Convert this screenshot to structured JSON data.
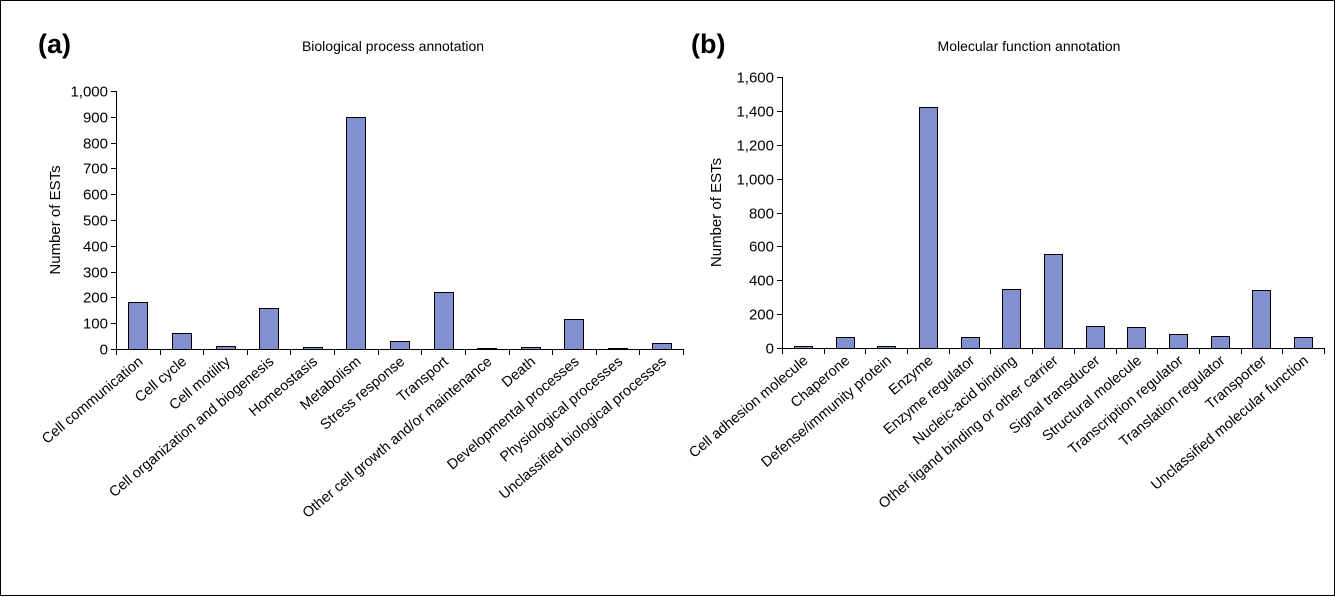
{
  "colors": {
    "bar_fill": "#8390cf",
    "axis": "#000000",
    "background": "#ffffff"
  },
  "chart_data": [
    {
      "panel_label": "(a)",
      "type": "bar",
      "title": "Biological process annotation",
      "xlabel": "",
      "ylabel": "Number of ESTs",
      "ylim": [
        0,
        1000
      ],
      "yticks": [
        0,
        100,
        200,
        300,
        400,
        500,
        600,
        700,
        800,
        900,
        1000
      ],
      "ytick_labels": [
        "0",
        "100",
        "200",
        "300",
        "400",
        "500",
        "600",
        "700",
        "800",
        "900",
        "1,000"
      ],
      "grid": false,
      "categories": [
        "Cell communication",
        "Cell cycle",
        "Cell motility",
        "Cell organization and biogenesis",
        "Homeostasis",
        "Metabolism",
        "Stress response",
        "Transport",
        "Other cell growth and/or maintenance",
        "Death",
        "Developmental processes",
        "Physiological processes",
        "Unclassified biological processes"
      ],
      "values": [
        182,
        62,
        12,
        158,
        8,
        900,
        30,
        220,
        5,
        8,
        118,
        4,
        22
      ]
    },
    {
      "panel_label": "(b)",
      "type": "bar",
      "title": "Molecular function annotation",
      "xlabel": "",
      "ylabel": "Number of ESTs",
      "ylim": [
        0,
        1600
      ],
      "yticks": [
        0,
        200,
        400,
        600,
        800,
        1000,
        1200,
        1400,
        1600
      ],
      "ytick_labels": [
        "0",
        "200",
        "400",
        "600",
        "800",
        "1,000",
        "1,200",
        "1,400",
        "1,600"
      ],
      "grid": false,
      "categories": [
        "Cell adhesion molecule",
        "Chaperone",
        "Defense/immunity protein",
        "Enzyme",
        "Enzyme regulator",
        "Nucleic-acid binding",
        "Other ligand binding or other carrier",
        "Signal transducer",
        "Structural molecule",
        "Transcription regulator",
        "Translation regulator",
        "Transporter",
        "Unclassified molecular function"
      ],
      "values": [
        10,
        65,
        10,
        1425,
        65,
        348,
        555,
        130,
        125,
        85,
        72,
        342,
        62
      ]
    }
  ]
}
